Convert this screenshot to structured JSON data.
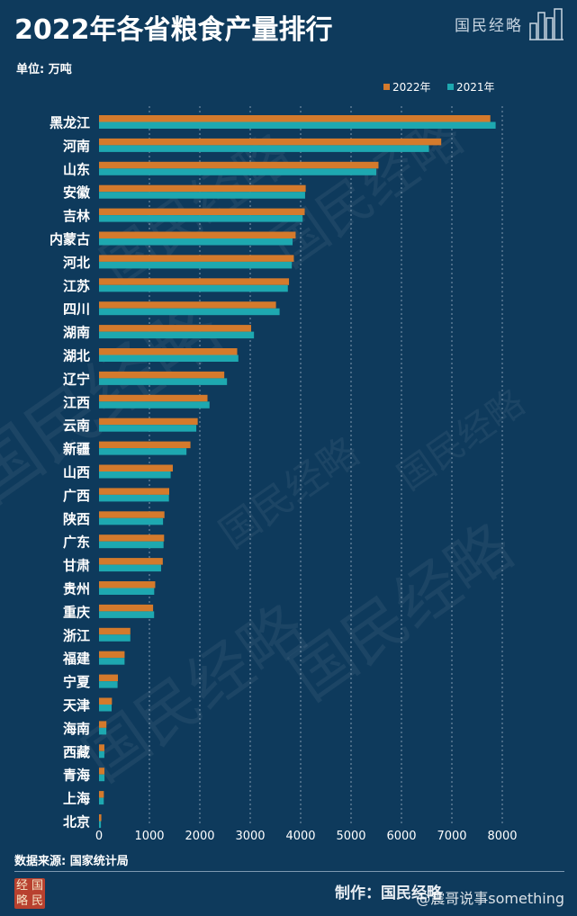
{
  "header": {
    "title": "2022年各省粮食产量排行",
    "brand": "国民经略",
    "unit": "单位: 万吨"
  },
  "footer": {
    "source": "数据来源: 国家统计局",
    "made_by": "制作：国民经略",
    "stamp_chars": [
      "经",
      "国",
      "略",
      "民"
    ],
    "credit": "@震哥说事something"
  },
  "colors": {
    "background": "#0e3a5c",
    "series_2022": "#d47a2c",
    "series_2021": "#1ea8b0",
    "grid": "#9fb3c6"
  },
  "chart_data": {
    "type": "bar",
    "orientation": "horizontal",
    "title": "2022年各省粮食产量排行",
    "xlabel": "",
    "ylabel": "",
    "unit": "单位: 万吨",
    "xlim": [
      0,
      8000
    ],
    "xticks": [
      0,
      1000,
      2000,
      3000,
      4000,
      5000,
      6000,
      7000,
      8000
    ],
    "grid": "vertical dotted",
    "legend_position": "top-right",
    "categories": [
      "黑龙江",
      "河南",
      "山东",
      "安徽",
      "吉林",
      "内蒙古",
      "河北",
      "江苏",
      "四川",
      "湖南",
      "湖北",
      "辽宁",
      "江西",
      "云南",
      "新疆",
      "山西",
      "广西",
      "陕西",
      "广东",
      "甘肃",
      "贵州",
      "重庆",
      "浙江",
      "福建",
      "宁夏",
      "天津",
      "海南",
      "西藏",
      "青海",
      "上海",
      "北京"
    ],
    "series": [
      {
        "name": "2022年",
        "color": "#d47a2c",
        "values": [
          7763,
          6789,
          5544,
          4100,
          4081,
          3901,
          3865,
          3769,
          3511,
          3018,
          2741,
          2485,
          2152,
          1958,
          1814,
          1464,
          1393,
          1298,
          1291,
          1265,
          1115,
          1073,
          621,
          508,
          375,
          256,
          147,
          107,
          107,
          96,
          46
        ]
      },
      {
        "name": "2021年",
        "color": "#1ea8b0",
        "values": [
          7868,
          6545,
          5501,
          4088,
          4039,
          3840,
          3825,
          3746,
          3582,
          3074,
          2764,
          2539,
          2192,
          1930,
          1735,
          1421,
          1387,
          1270,
          1280,
          1231,
          1095,
          1093,
          621,
          507,
          368,
          250,
          146,
          106,
          109,
          94,
          38
        ]
      }
    ]
  }
}
